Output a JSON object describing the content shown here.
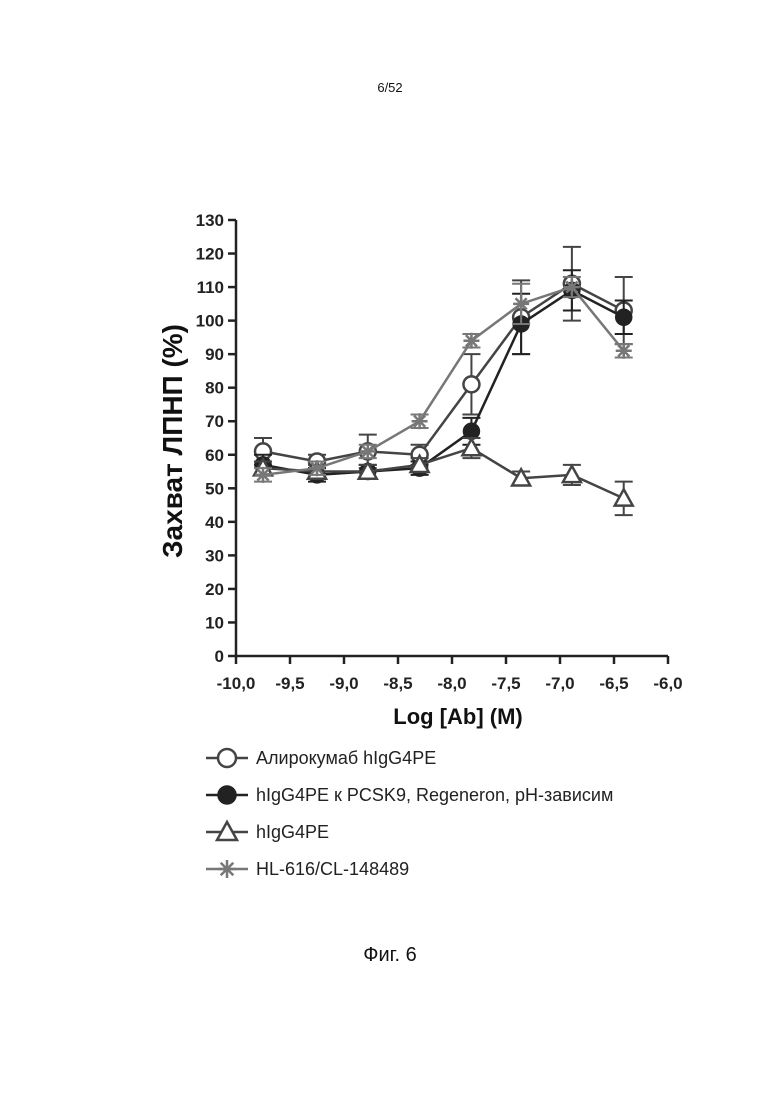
{
  "page": {
    "number": "6/52",
    "caption": "Фиг. 6"
  },
  "chart_data": {
    "type": "line",
    "xlabel": "Log [Ab] (M)",
    "ylabel": "Захват ЛПНП (%)",
    "xlim": [
      -10.0,
      -6.0
    ],
    "ylim": [
      0,
      130
    ],
    "xticks": [
      -10.0,
      -9.5,
      -9.0,
      -8.5,
      -8.0,
      -7.5,
      -7.0,
      -6.5,
      -6.0
    ],
    "xtick_labels": [
      "-10,0",
      "-9,5",
      "-9,0",
      "-8,5",
      "-8,0",
      "-7,5",
      "-7,0",
      "-6,5",
      "-6,0"
    ],
    "yticks": [
      0,
      10,
      20,
      30,
      40,
      50,
      60,
      70,
      80,
      90,
      100,
      110,
      120,
      130
    ],
    "ytick_labels": [
      "0",
      "10",
      "20",
      "30",
      "40",
      "50",
      "60",
      "70",
      "80",
      "90",
      "100",
      "110",
      "120",
      "130"
    ],
    "x": [
      -9.75,
      -9.25,
      -8.78,
      -8.3,
      -7.82,
      -7.36,
      -6.89,
      -6.41
    ],
    "legend_position": "bottom",
    "series": [
      {
        "name": "Алирокумаб hIgG4PE",
        "marker": "open-circle",
        "color": "#444444",
        "values": [
          61,
          58,
          61,
          60,
          81,
          101,
          111,
          103
        ],
        "errors": [
          4,
          2,
          5,
          3,
          9,
          11,
          11,
          10
        ]
      },
      {
        "name": "hIgG4PE к PCSK9, Regeneron, pH-зависим",
        "marker": "filled-circle",
        "color": "#222222",
        "values": [
          57,
          54,
          55,
          56,
          67,
          99,
          109,
          101
        ],
        "errors": [
          3,
          2,
          2,
          2,
          4,
          9,
          6,
          5
        ]
      },
      {
        "name": "hIgG4PE",
        "marker": "open-triangle",
        "color": "#444444",
        "values": [
          56,
          55,
          55,
          57,
          62,
          53,
          54,
          47
        ],
        "errors": [
          2,
          2,
          2,
          2,
          3,
          2,
          3,
          5
        ]
      },
      {
        "name": "HL-616/CL-148489",
        "marker": "asterisk",
        "color": "#777777",
        "values": [
          54,
          56,
          61,
          70,
          94,
          105,
          110,
          91
        ],
        "errors": [
          2,
          2,
          2,
          2,
          2,
          6,
          3,
          2
        ]
      }
    ]
  }
}
